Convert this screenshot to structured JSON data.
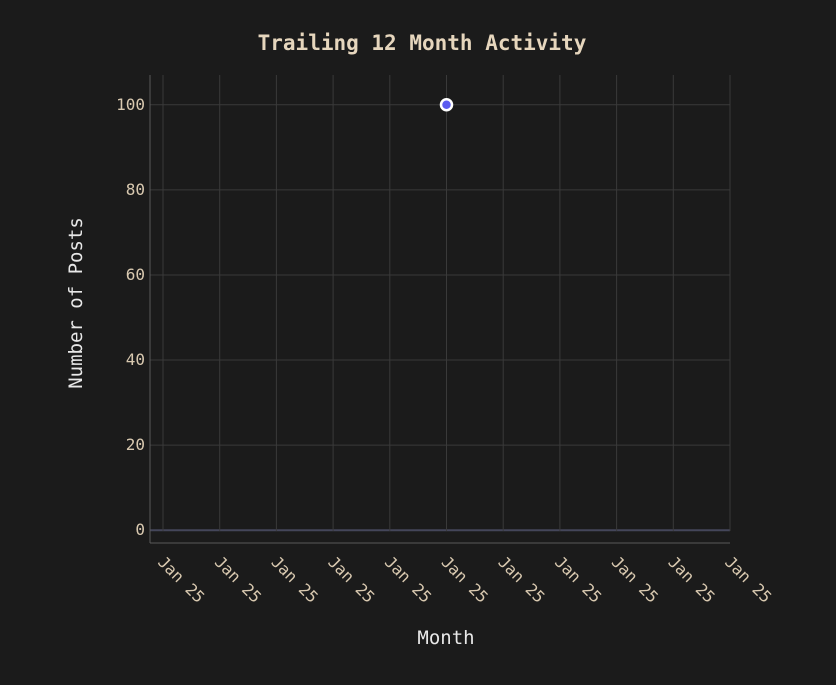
{
  "colors": {
    "background": "#1b1b1b",
    "title_text": "#e6d6bd",
    "tick_text": "#d9c9b0",
    "axis_title_text": "#e8e8e8",
    "grid": "#3a3a3a",
    "axis_line": "#5a5a5a",
    "zero_line": "#44465a",
    "point_fill": "#5b5bf0",
    "point_stroke": "#ffffff"
  },
  "chart_data": {
    "type": "scatter",
    "title": "Trailing 12 Month Activity",
    "xlabel": "Month",
    "ylabel": "Number of Posts",
    "x_tick_labels": [
      "Jan 25",
      "Jan 25",
      "Jan 25",
      "Jan 25",
      "Jan 25",
      "Jan 25",
      "Jan 25",
      "Jan 25",
      "Jan 25",
      "Jan 25",
      "Jan 25"
    ],
    "y_ticks": [
      0,
      20,
      40,
      60,
      80,
      100
    ],
    "ylim": [
      -3,
      107
    ],
    "grid": true,
    "series": [
      {
        "points": [
          {
            "x_index": 5,
            "y": 100
          }
        ]
      }
    ]
  }
}
